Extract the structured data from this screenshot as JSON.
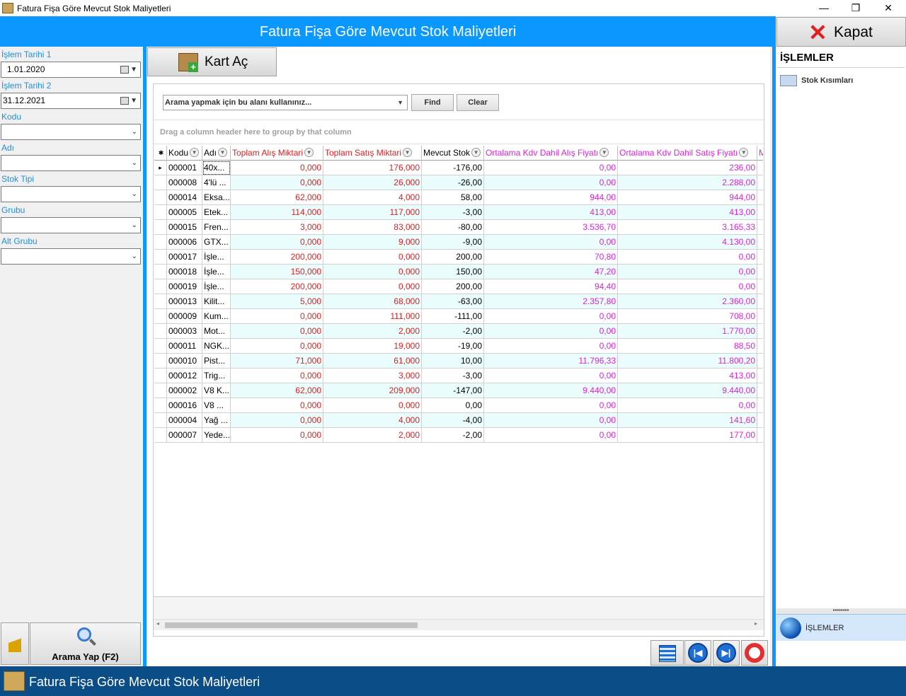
{
  "window": {
    "title": "Fatura Fişa Göre Mevcut Stok Maliyetleri",
    "minimize": "—",
    "restore": "❐",
    "close": "✕"
  },
  "header": {
    "title": "Fatura Fişa Göre Mevcut Stok Maliyetleri",
    "close_button": "Kapat"
  },
  "filters": {
    "islem_tarihi_1_label": "İşlem Tarihi 1",
    "islem_tarihi_1_value": "1.01.2020",
    "islem_tarihi_2_label": "İşlem Tarihi 2",
    "islem_tarihi_2_value": "31.12.2021",
    "kodu_label": "Kodu",
    "adi_label": "Adı",
    "stok_tipi_label": "Stok Tipi",
    "grubu_label": "Grubu",
    "alt_grubu_label": "Alt Grubu",
    "search_button": "Arama Yap (F2)"
  },
  "toolbar": {
    "kart_ac": "Kart Aç"
  },
  "grid": {
    "search_placeholder": "Arama yapmak için bu alanı kullanınız...",
    "find": "Find",
    "clear": "Clear",
    "group_hint": "Drag a column header here to group by that column",
    "columns": [
      "Kodu",
      "Adı",
      "Toplam Alış Miktari",
      "Toplam Satış Miktari",
      "Mevcut Stok",
      "Ortalama Kdv Dahil Alış Fiyatı",
      "Ortalama Kdv Dahil Satış Fiyatı",
      "M"
    ],
    "rows": [
      [
        "000001",
        "40x...",
        "0,000",
        "176,000",
        "-176,00",
        "0,00",
        "236,00"
      ],
      [
        "000008",
        "4'lü ...",
        "0,000",
        "26,000",
        "-26,00",
        "0,00",
        "2.288,00"
      ],
      [
        "000014",
        "Eksa...",
        "62,000",
        "4,000",
        "58,00",
        "944,00",
        "944,00"
      ],
      [
        "000005",
        "Etek...",
        "114,000",
        "117,000",
        "-3,00",
        "413,00",
        "413,00"
      ],
      [
        "000015",
        "Fren...",
        "3,000",
        "83,000",
        "-80,00",
        "3.536,70",
        "3.165,33"
      ],
      [
        "000006",
        "GTX...",
        "0,000",
        "9,000",
        "-9,00",
        "0,00",
        "4.130,00"
      ],
      [
        "000017",
        "İşle...",
        "200,000",
        "0,000",
        "200,00",
        "70,80",
        "0,00"
      ],
      [
        "000018",
        "İşle...",
        "150,000",
        "0,000",
        "150,00",
        "47,20",
        "0,00"
      ],
      [
        "000019",
        "İşle...",
        "200,000",
        "0,000",
        "200,00",
        "94,40",
        "0,00"
      ],
      [
        "000013",
        "Kilit...",
        "5,000",
        "68,000",
        "-63,00",
        "2.357,80",
        "2.360,00"
      ],
      [
        "000009",
        "Kum...",
        "0,000",
        "111,000",
        "-111,00",
        "0,00",
        "708,00"
      ],
      [
        "000003",
        "Mot...",
        "0,000",
        "2,000",
        "-2,00",
        "0,00",
        "1.770,00"
      ],
      [
        "000011",
        "NGK...",
        "0,000",
        "19,000",
        "-19,00",
        "0,00",
        "88,50"
      ],
      [
        "000010",
        "Pist...",
        "71,000",
        "61,000",
        "10,00",
        "11.796,33",
        "11.800,20"
      ],
      [
        "000012",
        "Trig...",
        "0,000",
        "3,000",
        "-3,00",
        "0,00",
        "413,00"
      ],
      [
        "000002",
        "V8 K...",
        "62,000",
        "209,000",
        "-147,00",
        "9.440,00",
        "9.440,00"
      ],
      [
        "000016",
        "V8 ...",
        "0,000",
        "0,000",
        "0,00",
        "0,00",
        "0,00"
      ],
      [
        "000004",
        "Yağ ...",
        "0,000",
        "4,000",
        "-4,00",
        "0,00",
        "141,60"
      ],
      [
        "000007",
        "Yede...",
        "0,000",
        "2,000",
        "-2,00",
        "0,00",
        "177,00"
      ]
    ]
  },
  "right_panel": {
    "title": "İŞLEMLER",
    "item": "Stok Kısımları",
    "nav_label": "İŞLEMLER"
  },
  "statusbar": {
    "title": "Fatura Fişa Göre Mevcut Stok Maliyetleri"
  },
  "colors": {
    "accent": "#0a98ff",
    "statusbar": "#0b4d86",
    "red_column": "#e02020",
    "magenta_column": "#e020e0"
  }
}
